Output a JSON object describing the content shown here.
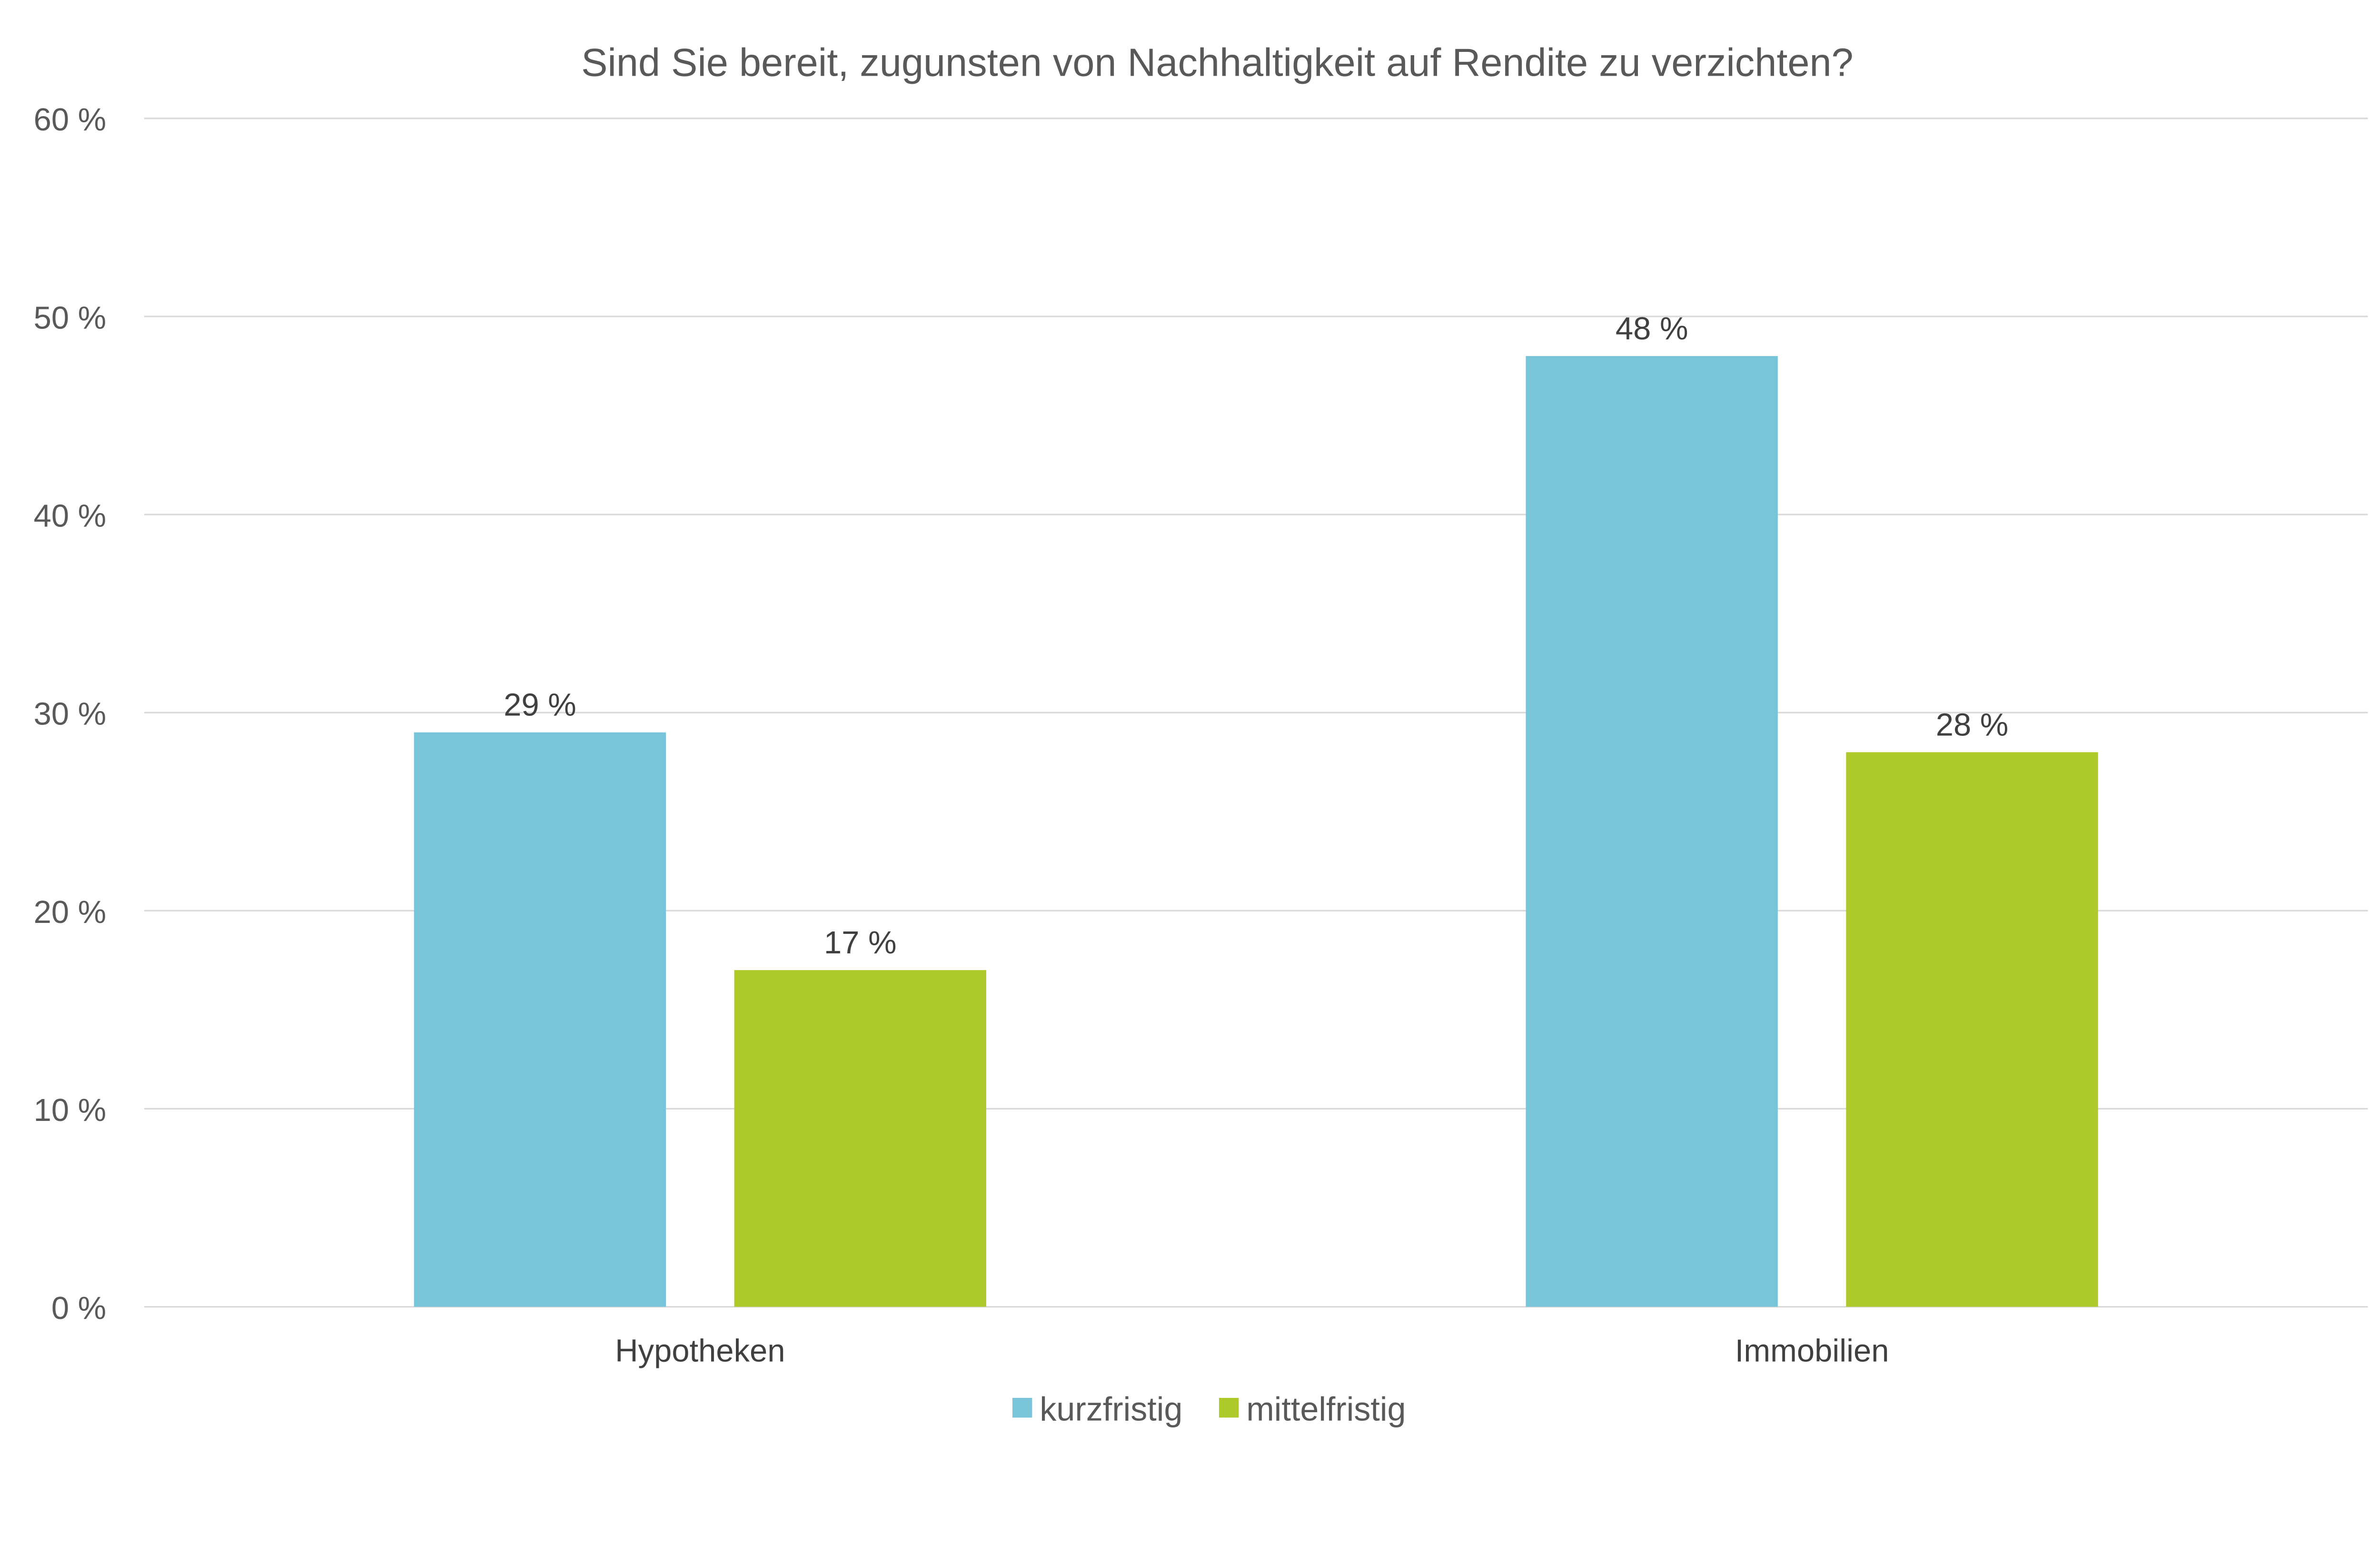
{
  "chart_data": {
    "type": "bar",
    "title": "Sind Sie bereit, zugunsten von Nachhaltigkeit auf Rendite zu verzichten?",
    "xlabel": "",
    "ylabel": "",
    "categories": [
      "Hypotheken",
      "Immobilien"
    ],
    "series": [
      {
        "name": "kurzfristig",
        "values": [
          29,
          48
        ],
        "color": "#78C4D8",
        "labels": [
          "29 %",
          "48 %"
        ]
      },
      {
        "name": "mittelfristig",
        "values": [
          17,
          28
        ],
        "color": "#ADCA2A",
        "labels": [
          "17 %",
          "28 %"
        ]
      }
    ],
    "ylim": [
      0,
      60
    ],
    "yticks": [
      0,
      10,
      20,
      30,
      40,
      50,
      60
    ],
    "ytick_labels": [
      "0 %",
      "10 %",
      "20 %",
      "30 %",
      "40 %",
      "50 %",
      "60 %"
    ],
    "grid": true,
    "legend_position": "bottom"
  }
}
